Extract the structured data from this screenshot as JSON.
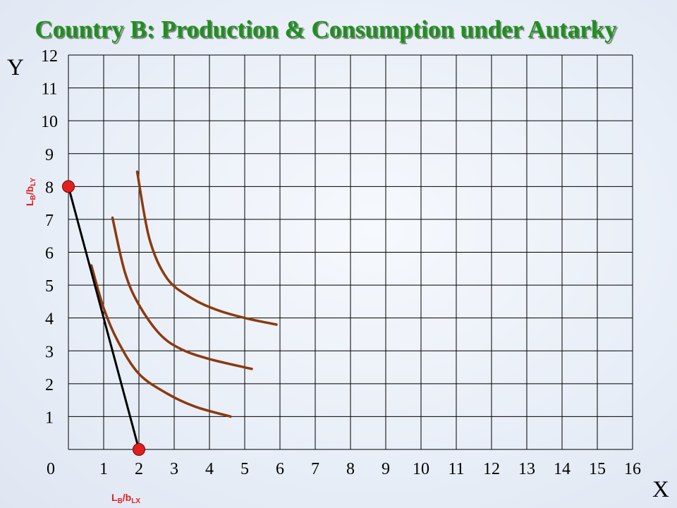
{
  "chart_data": {
    "type": "line",
    "title": "Country B: Production & Consumption under Autarky",
    "xlabel": "X",
    "ylabel": "Y",
    "xlim": [
      0,
      16
    ],
    "ylim": [
      0,
      12
    ],
    "x_ticks": [
      "1",
      "2",
      "3",
      "4",
      "5",
      "6",
      "7",
      "8",
      "9",
      "10",
      "11",
      "12",
      "13",
      "14",
      "15",
      "16"
    ],
    "y_ticks": [
      "1",
      "2",
      "3",
      "4",
      "5",
      "6",
      "7",
      "8",
      "9",
      "10",
      "11",
      "12"
    ],
    "origin_label": "0",
    "grid": true,
    "colors": {
      "grid": "#000000",
      "ppf": "#000000",
      "indifference": "#8b3a0e",
      "points": "#e02020",
      "labels": "#e02020",
      "title": "#1f8f1f"
    },
    "ppf": {
      "points": [
        [
          0,
          8
        ],
        [
          2,
          0
        ]
      ],
      "intercept_labels": {
        "y": {
          "main": "L",
          "sub1": "B",
          "mid": "/b",
          "sub2": "LY"
        },
        "x": {
          "main": "L",
          "sub1": "B",
          "mid": "/b",
          "sub2": "LX"
        }
      }
    },
    "indifference_curves": [
      {
        "points": [
          [
            0.65,
            5.6
          ],
          [
            1.0,
            4.3
          ],
          [
            1.4,
            3.3
          ],
          [
            2.0,
            2.3
          ],
          [
            2.8,
            1.7
          ],
          [
            3.6,
            1.3
          ],
          [
            4.6,
            1.0
          ]
        ]
      },
      {
        "points": [
          [
            1.25,
            7.05
          ],
          [
            1.6,
            5.4
          ],
          [
            2.0,
            4.4
          ],
          [
            2.6,
            3.5
          ],
          [
            3.2,
            3.05
          ],
          [
            4.0,
            2.75
          ],
          [
            5.2,
            2.45
          ]
        ]
      },
      {
        "points": [
          [
            1.95,
            8.45
          ],
          [
            2.3,
            6.4
          ],
          [
            2.8,
            5.2
          ],
          [
            3.5,
            4.6
          ],
          [
            4.2,
            4.25
          ],
          [
            5.0,
            4.0
          ],
          [
            5.9,
            3.8
          ]
        ]
      }
    ]
  }
}
